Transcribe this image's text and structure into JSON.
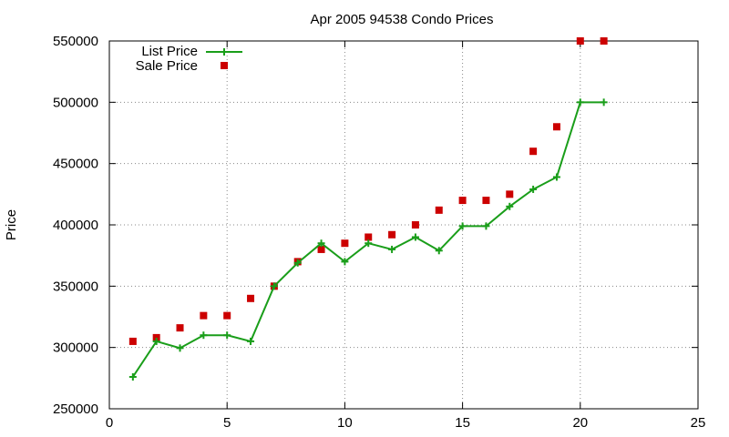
{
  "chart_data": {
    "type": "line",
    "title": "Apr 2005 94538 Condo Prices",
    "xlabel": "",
    "ylabel": "Price",
    "xlim": [
      0,
      25
    ],
    "ylim": [
      250000,
      550000
    ],
    "x_ticks": [
      "0",
      "5",
      "10",
      "15",
      "20",
      "25"
    ],
    "y_ticks": [
      "250000",
      "300000",
      "350000",
      "400000",
      "450000",
      "500000",
      "550000"
    ],
    "grid": true,
    "legend_position": "top-left",
    "series": [
      {
        "name": "List Price",
        "style": "line-with-plus-markers",
        "color": "#1a9e1a",
        "x": [
          1,
          2,
          3,
          4,
          5,
          6,
          7,
          8,
          9,
          10,
          11,
          12,
          13,
          14,
          15,
          16,
          17,
          18,
          19,
          20,
          21
        ],
        "values": [
          276000,
          305000,
          299500,
          310000,
          310000,
          305000,
          350000,
          369000,
          385000,
          370000,
          385000,
          380000,
          390000,
          379000,
          399000,
          399000,
          415000,
          429000,
          439000,
          500000,
          500000
        ]
      },
      {
        "name": "Sale Price",
        "style": "square-markers",
        "color": "#cc0000",
        "x": [
          1,
          2,
          3,
          4,
          5,
          6,
          7,
          8,
          9,
          10,
          11,
          12,
          13,
          14,
          15,
          16,
          17,
          18,
          19,
          20,
          21
        ],
        "values": [
          305000,
          308000,
          316000,
          326000,
          326000,
          340000,
          350000,
          370000,
          380000,
          385000,
          390000,
          392000,
          400000,
          412000,
          420000,
          420000,
          425000,
          460000,
          480000,
          550000,
          550000
        ]
      }
    ]
  }
}
